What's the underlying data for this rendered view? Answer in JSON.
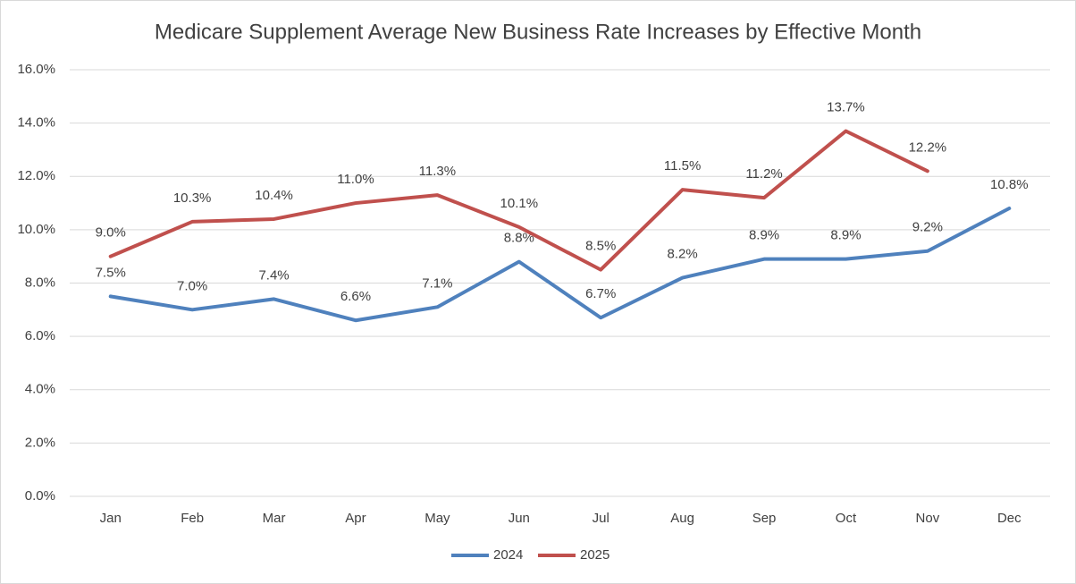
{
  "chart_data": {
    "type": "line",
    "title": "Medicare Supplement Average New Business Rate Increases by Effective Month",
    "categories": [
      "Jan",
      "Feb",
      "Mar",
      "Apr",
      "May",
      "Jun",
      "Jul",
      "Aug",
      "Sep",
      "Oct",
      "Nov",
      "Dec"
    ],
    "series": [
      {
        "name": "2024",
        "color": "#4f81bd",
        "values": [
          7.5,
          7.0,
          7.4,
          6.6,
          7.1,
          8.8,
          6.7,
          8.2,
          8.9,
          8.9,
          9.2,
          10.8
        ],
        "value_labels": [
          "7.5%",
          "7.0%",
          "7.4%",
          "6.6%",
          "7.1%",
          "8.8%",
          "6.7%",
          "8.2%",
          "8.9%",
          "8.9%",
          "9.2%",
          "10.8%"
        ]
      },
      {
        "name": "2025",
        "color": "#c0504d",
        "values": [
          9.0,
          10.3,
          10.4,
          11.0,
          11.3,
          10.1,
          8.5,
          11.5,
          11.2,
          13.7,
          12.2,
          null
        ],
        "value_labels": [
          "9.0%",
          "10.3%",
          "10.4%",
          "11.0%",
          "11.3%",
          "10.1%",
          "8.5%",
          "11.5%",
          "11.2%",
          "13.7%",
          "12.2%",
          null
        ]
      }
    ],
    "ylim": [
      0,
      16
    ],
    "yticks": [
      {
        "value": 0,
        "label": "0.0%"
      },
      {
        "value": 2,
        "label": "2.0%"
      },
      {
        "value": 4,
        "label": "4.0%"
      },
      {
        "value": 6,
        "label": "6.0%"
      },
      {
        "value": 8,
        "label": "8.0%"
      },
      {
        "value": 10,
        "label": "10.0%"
      },
      {
        "value": 12,
        "label": "12.0%"
      },
      {
        "value": 14,
        "label": "14.0%"
      },
      {
        "value": 16,
        "label": "16.0%"
      }
    ],
    "grid": true,
    "legend": "bottom"
  }
}
